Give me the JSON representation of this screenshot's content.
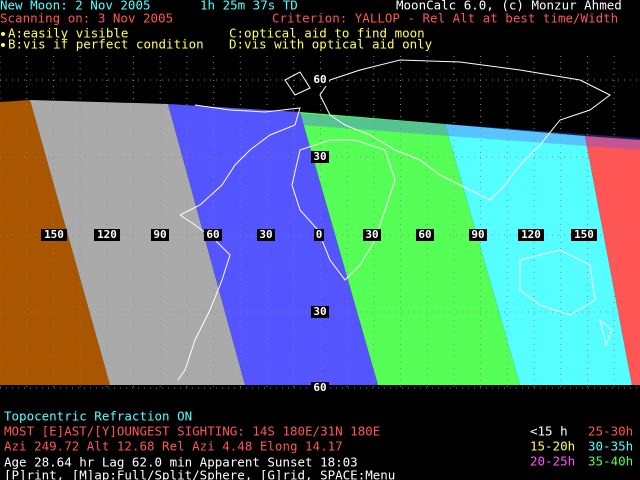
{
  "header": {
    "new_moon": "New Moon: 2 Nov 2005",
    "time": "1h 25m 37s  TD",
    "app": "MoonCalc 6.0, (c) Monzur Ahmed",
    "scanning": "Scanning on: 3 Nov 2005",
    "criterion": "Criterion: YALLOP - Rel Alt at best time/Width"
  },
  "keys": {
    "a": "A:easily visible",
    "b": "B:vis if perfect condition",
    "c": "C:optical aid to find moon",
    "d": "D:vis with optical aid only"
  },
  "map": {
    "lat_labels": [
      "60",
      "30",
      "30",
      "60"
    ],
    "lon_labels": [
      "150",
      "120",
      "90",
      "60",
      "30",
      "0",
      "30",
      "60",
      "90",
      "120",
      "150"
    ]
  },
  "footer": {
    "mode": "Topocentric  Refraction ON",
    "sighting": "MOST [E]AST/[Y]OUNGEST SIGHTING: 14S 180E/31N 180E",
    "position": "Azi 249.72  Alt 12.68  Rel Azi 4.48  Elong 14.17",
    "age": "Age 28.64 hr  Lag 62.0 min  Apparent Sunset  18:03",
    "menu": "[P]rint, [M]ap:Full/Split/Sphere, [G]rid, SPACE:Menu"
  },
  "legend": [
    "<15 h",
    "15-20h",
    "20-25h",
    "25-30h",
    "30-35h",
    "35-40h"
  ]
}
